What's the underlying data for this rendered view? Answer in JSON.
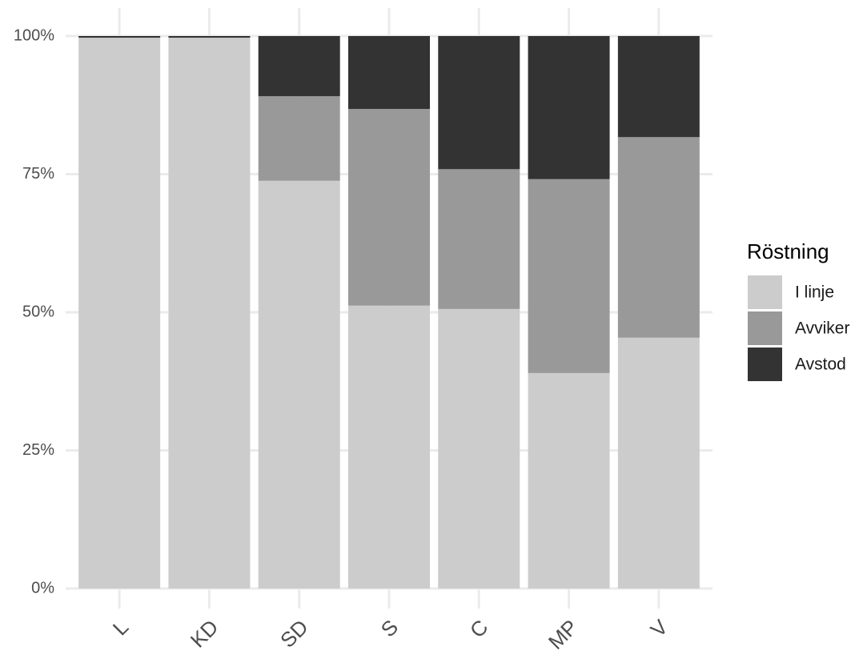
{
  "chart_data": {
    "type": "stacked_bar",
    "categories": [
      "L",
      "KD",
      "SD",
      "S",
      "C",
      "MP",
      "V"
    ],
    "series": [
      {
        "name": "I linje",
        "color": "#cccccc",
        "values": [
          99.7,
          99.7,
          73.8,
          51.2,
          50.6,
          39.0,
          45.4
        ]
      },
      {
        "name": "Avviker",
        "color": "#999999",
        "values": [
          0,
          0,
          15.3,
          35.6,
          25.3,
          35.1,
          36.3
        ]
      },
      {
        "name": "Avstod",
        "color": "#333333",
        "values": [
          0.3,
          0.3,
          10.9,
          13.2,
          24.1,
          25.9,
          18.3
        ]
      }
    ],
    "ylim": [
      0,
      100
    ],
    "yticks": [
      {
        "value": 0,
        "label": "0%"
      },
      {
        "value": 25,
        "label": "25%"
      },
      {
        "value": 50,
        "label": "50%"
      },
      {
        "value": 75,
        "label": "75%"
      },
      {
        "value": 100,
        "label": "100%"
      }
    ],
    "legend_title": "Röstning",
    "legend_position": "right",
    "grid": true
  }
}
